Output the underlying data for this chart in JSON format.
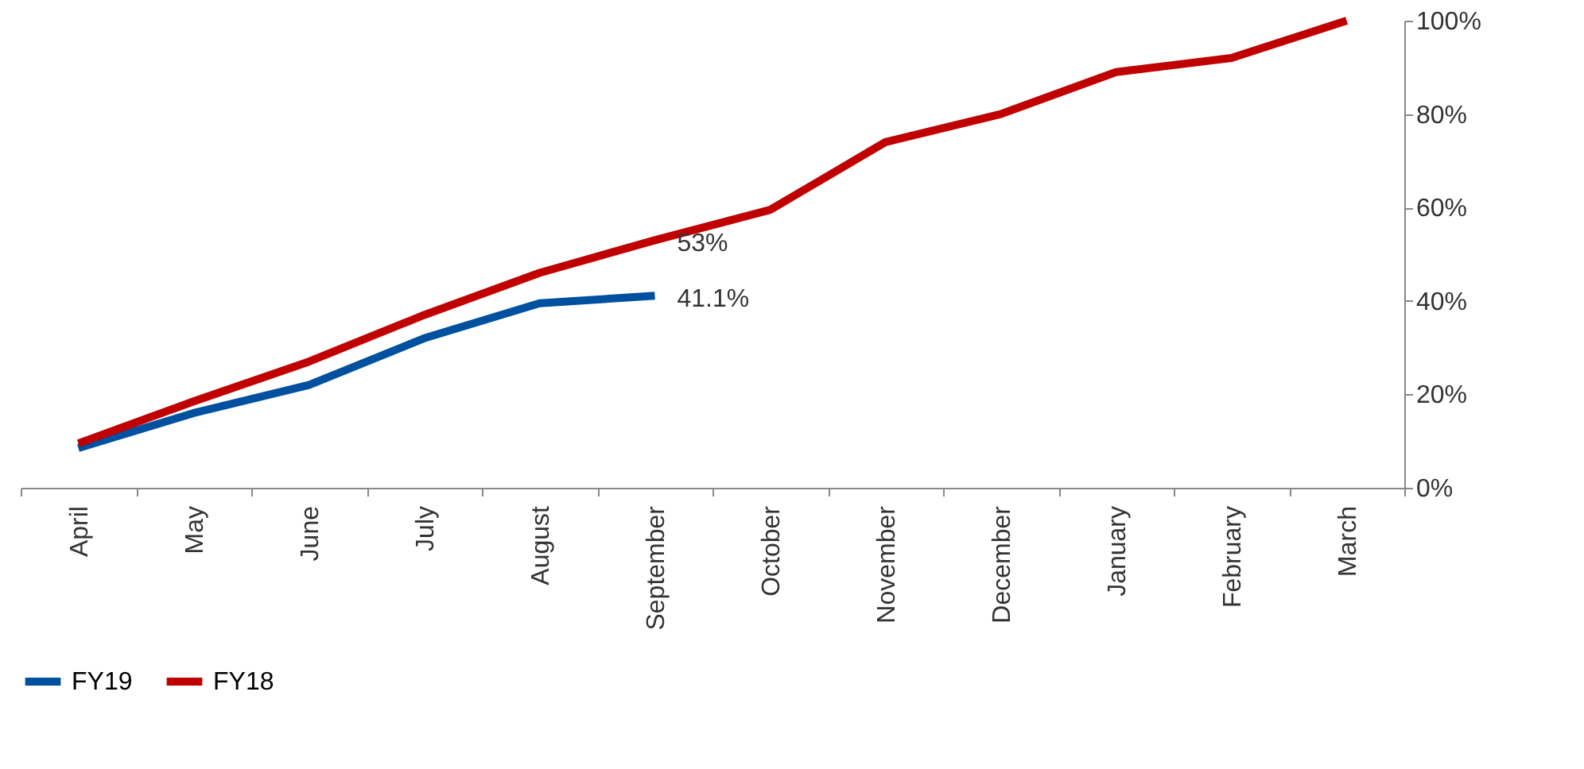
{
  "chart_data": {
    "type": "line",
    "categories": [
      "April",
      "May",
      "June",
      "July",
      "August",
      "September",
      "October",
      "November",
      "December",
      "January",
      "February",
      "March"
    ],
    "series": [
      {
        "name": "FY19",
        "color": "#0050a0",
        "values": [
          8.5,
          16,
          22,
          32,
          39.5,
          41.1,
          null,
          null,
          null,
          null,
          null,
          null
        ],
        "value_labels": [
          null,
          null,
          null,
          null,
          null,
          "41.1%",
          null,
          null,
          null,
          null,
          null,
          null
        ]
      },
      {
        "name": "FY18",
        "color": "#c00000",
        "values": [
          9.5,
          18.5,
          27,
          37,
          46,
          53,
          59.5,
          74,
          80,
          89,
          92,
          100
        ],
        "value_labels": [
          null,
          null,
          null,
          null,
          null,
          "53%",
          null,
          null,
          null,
          null,
          null,
          null
        ]
      }
    ],
    "ylim": [
      0,
      100
    ],
    "yticks": [
      {
        "value": 0,
        "label": "0%"
      },
      {
        "value": 20,
        "label": "20%"
      },
      {
        "value": 40,
        "label": "40%"
      },
      {
        "value": 60,
        "label": "60%"
      },
      {
        "value": 80,
        "label": "80%"
      },
      {
        "value": 100,
        "label": "100%"
      }
    ],
    "grid": false,
    "legend": "bottom",
    "marker": "none",
    "line_style": "solid"
  }
}
